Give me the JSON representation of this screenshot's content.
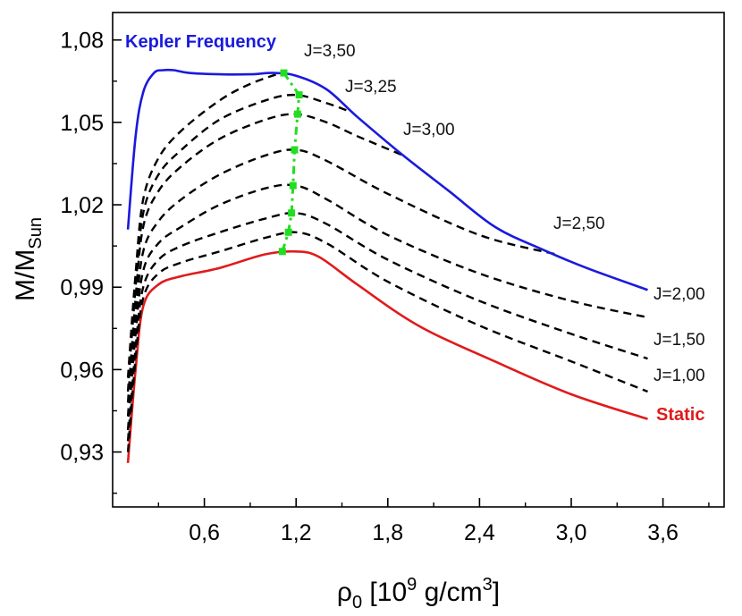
{
  "chart_data": {
    "type": "line",
    "xlabel": "ρ0 [10^9 g/cm^3]",
    "ylabel": "M/MSun",
    "xlim": [
      0.0,
      4.0
    ],
    "ylim": [
      0.91,
      1.09
    ],
    "x_ticks": [
      0.6,
      1.2,
      1.8,
      2.4,
      3.0,
      3.6
    ],
    "x_tick_labels": [
      "0,6",
      "1,2",
      "1,8",
      "2,4",
      "3,0",
      "3,6"
    ],
    "y_ticks": [
      0.93,
      0.96,
      0.99,
      1.02,
      1.05,
      1.08
    ],
    "y_tick_labels": [
      "0,93",
      "0,96",
      "0,99",
      "1,02",
      "1,05",
      "1,08"
    ],
    "grid": false,
    "legend": "none",
    "colors": {
      "kepler": "#1a1adc",
      "static": "#e01b1b",
      "spin": "#000000",
      "maxima": "#22dd22"
    },
    "series": [
      {
        "name": "Static",
        "style": "solid",
        "color": "#e01b1b",
        "x": [
          0.1,
          0.15,
          0.2,
          0.3,
          0.45,
          0.7,
          1.0,
          1.2,
          1.35,
          1.6,
          2.0,
          2.5,
          3.0,
          3.5
        ],
        "y": [
          0.926,
          0.96,
          0.983,
          0.991,
          0.994,
          0.997,
          1.002,
          1.003,
          1.001,
          0.991,
          0.976,
          0.963,
          0.951,
          0.942
        ]
      },
      {
        "name": "J=1,00",
        "style": "dashed",
        "color": "#000000",
        "x": [
          0.1,
          0.15,
          0.2,
          0.3,
          0.45,
          0.7,
          1.0,
          1.2,
          1.4,
          1.8,
          2.4,
          3.0,
          3.5
        ],
        "y": [
          0.93,
          0.964,
          0.986,
          0.995,
          0.999,
          1.003,
          1.008,
          1.01,
          1.006,
          0.992,
          0.976,
          0.963,
          0.952
        ]
      },
      {
        "name": "J=1,50",
        "style": "dashed",
        "color": "#000000",
        "x": [
          0.1,
          0.15,
          0.2,
          0.3,
          0.45,
          0.7,
          1.0,
          1.2,
          1.4,
          1.8,
          2.4,
          3.0,
          3.5
        ],
        "y": [
          0.934,
          0.968,
          0.99,
          1.0,
          1.005,
          1.01,
          1.015,
          1.017,
          1.013,
          1.0,
          0.985,
          0.973,
          0.964
        ]
      },
      {
        "name": "J=2,00",
        "style": "dashed",
        "color": "#000000",
        "x": [
          0.1,
          0.15,
          0.2,
          0.3,
          0.45,
          0.7,
          1.0,
          1.2,
          1.4,
          1.8,
          2.4,
          3.0,
          3.5
        ],
        "y": [
          0.938,
          0.973,
          0.996,
          1.006,
          1.012,
          1.02,
          1.026,
          1.027,
          1.022,
          1.009,
          0.995,
          0.985,
          0.979
        ]
      },
      {
        "name": "J=2,50",
        "style": "dashed",
        "color": "#000000",
        "x": [
          0.1,
          0.15,
          0.2,
          0.3,
          0.45,
          0.7,
          1.0,
          1.2,
          1.4,
          1.8,
          2.4,
          2.9
        ],
        "y": [
          0.943,
          0.979,
          1.003,
          1.014,
          1.022,
          1.031,
          1.038,
          1.04,
          1.036,
          1.024,
          1.009,
          1.002
        ]
      },
      {
        "name": "J=3,00",
        "style": "dashed",
        "color": "#000000",
        "x": [
          0.1,
          0.15,
          0.2,
          0.3,
          0.45,
          0.7,
          1.0,
          1.2,
          1.4,
          1.6,
          1.9
        ],
        "y": [
          0.948,
          0.986,
          1.012,
          1.025,
          1.034,
          1.044,
          1.051,
          1.053,
          1.05,
          1.045,
          1.038
        ]
      },
      {
        "name": "J=3,25",
        "style": "dashed",
        "color": "#000000",
        "x": [
          0.1,
          0.15,
          0.2,
          0.3,
          0.45,
          0.7,
          1.0,
          1.2,
          1.4,
          1.55
        ],
        "y": [
          0.952,
          0.99,
          1.017,
          1.031,
          1.04,
          1.051,
          1.058,
          1.06,
          1.057,
          1.054
        ]
      },
      {
        "name": "J=3,50",
        "style": "dashed",
        "color": "#000000",
        "x": [
          0.1,
          0.15,
          0.2,
          0.3,
          0.45,
          0.7,
          0.9,
          1.1
        ],
        "y": [
          0.957,
          0.995,
          1.022,
          1.037,
          1.047,
          1.058,
          1.064,
          1.068
        ]
      },
      {
        "name": "Kepler Frequency",
        "style": "solid",
        "color": "#1a1adc",
        "x": [
          0.1,
          0.15,
          0.2,
          0.27,
          0.33,
          0.4,
          0.5,
          0.7,
          0.9,
          1.05,
          1.2,
          1.4,
          1.6,
          1.9,
          2.2,
          2.5,
          2.8,
          3.1,
          3.5
        ],
        "y": [
          1.011,
          1.045,
          1.061,
          1.068,
          1.069,
          1.069,
          1.068,
          1.0675,
          1.0675,
          1.068,
          1.067,
          1.062,
          1.052,
          1.038,
          1.025,
          1.012,
          1.004,
          0.997,
          0.989
        ]
      },
      {
        "name": "maxima",
        "style": "dash-dot-markers",
        "color": "#22dd22",
        "x": [
          1.11,
          1.15,
          1.17,
          1.18,
          1.19,
          1.21,
          1.22,
          1.12
        ],
        "y": [
          1.003,
          1.01,
          1.017,
          1.027,
          1.04,
          1.053,
          1.06,
          1.068
        ]
      }
    ],
    "annotations": [
      {
        "text": "Kepler Frequency",
        "color": "#1a1adc",
        "bold": true
      },
      {
        "text": "J=3,50",
        "color": "#111111",
        "bold": false
      },
      {
        "text": "J=3,25",
        "color": "#111111",
        "bold": false
      },
      {
        "text": "J=3,00",
        "color": "#111111",
        "bold": false
      },
      {
        "text": "J=2,50",
        "color": "#111111",
        "bold": false
      },
      {
        "text": "J=2,00",
        "color": "#111111",
        "bold": false
      },
      {
        "text": "J=1,50",
        "color": "#111111",
        "bold": false
      },
      {
        "text": "J=1,00",
        "color": "#111111",
        "bold": false
      },
      {
        "text": "Static",
        "color": "#e01b1b",
        "bold": true
      }
    ]
  }
}
